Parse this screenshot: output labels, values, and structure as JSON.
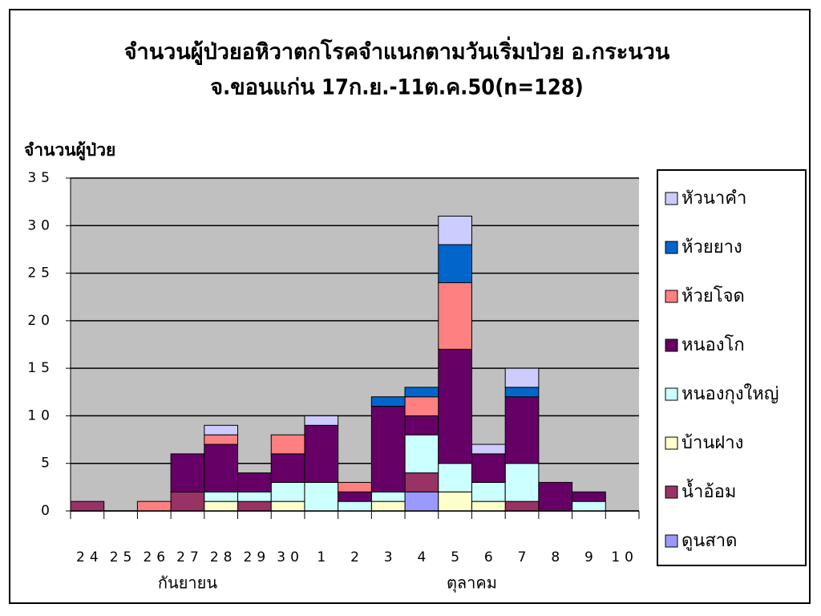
{
  "chart_data": {
    "type": "stacked-bar",
    "title_lines": [
      "จำนวนผู้ป่วยอหิวาตกโรคจำแนกตามวันเริ่มป่วย อ.กระนวน",
      "จ.ขอนแก่น 17ก.ย.-11ต.ค.50(n=128)"
    ],
    "y_label": "จำนวนผู้ป่วย",
    "categories": [
      "24",
      "25",
      "26",
      "27",
      "28",
      "29",
      "30",
      "1",
      "2",
      "3",
      "4",
      "5",
      "6",
      "7",
      "8",
      "9",
      "10"
    ],
    "category_groups": [
      {
        "label": "กันยายน",
        "from": 0,
        "to": 6
      },
      {
        "label": "ตุลาคม",
        "from": 7,
        "to": 16
      }
    ],
    "ylim": [
      0,
      35
    ],
    "yticks": [
      0,
      5,
      10,
      15,
      20,
      25,
      30,
      35
    ],
    "grid": true,
    "series": [
      {
        "name": "ดูนสาด",
        "color": "#9999ff",
        "values": [
          0,
          0,
          0,
          0,
          0,
          0,
          0,
          0,
          0,
          0,
          2,
          0,
          0,
          0,
          0,
          0,
          0
        ]
      },
      {
        "name": "น้ำอ้อม",
        "color": "#993366",
        "values": [
          1,
          0,
          0,
          2,
          0,
          1,
          0,
          0,
          0,
          0,
          2,
          0,
          0,
          1,
          0,
          0,
          0
        ]
      },
      {
        "name": "บ้านฝาง",
        "color": "#ffffcc",
        "values": [
          0,
          0,
          0,
          0,
          1,
          0,
          1,
          0,
          0,
          1,
          0,
          2,
          1,
          0,
          0,
          0,
          0
        ]
      },
      {
        "name": "หนองกุงใหญ่",
        "color": "#ccffff",
        "values": [
          0,
          0,
          0,
          0,
          1,
          1,
          2,
          3,
          1,
          1,
          4,
          3,
          2,
          4,
          0,
          1,
          0
        ]
      },
      {
        "name": "หนองโก",
        "color": "#660066",
        "values": [
          0,
          0,
          0,
          4,
          5,
          2,
          3,
          6,
          1,
          9,
          2,
          12,
          3,
          7,
          3,
          1,
          0
        ]
      },
      {
        "name": "ห้วยโจด",
        "color": "#ff8080",
        "values": [
          0,
          0,
          1,
          0,
          1,
          0,
          2,
          0,
          1,
          0,
          2,
          7,
          0,
          0,
          0,
          0,
          0
        ]
      },
      {
        "name": "ห้วยยาง",
        "color": "#0066cc",
        "values": [
          0,
          0,
          0,
          0,
          0,
          0,
          0,
          0,
          0,
          1,
          1,
          4,
          0,
          1,
          0,
          0,
          0
        ]
      },
      {
        "name": "หัวนาคำ",
        "color": "#ccccff",
        "values": [
          0,
          0,
          0,
          0,
          1,
          0,
          0,
          1,
          0,
          0,
          0,
          3,
          1,
          2,
          0,
          0,
          0
        ]
      }
    ]
  }
}
